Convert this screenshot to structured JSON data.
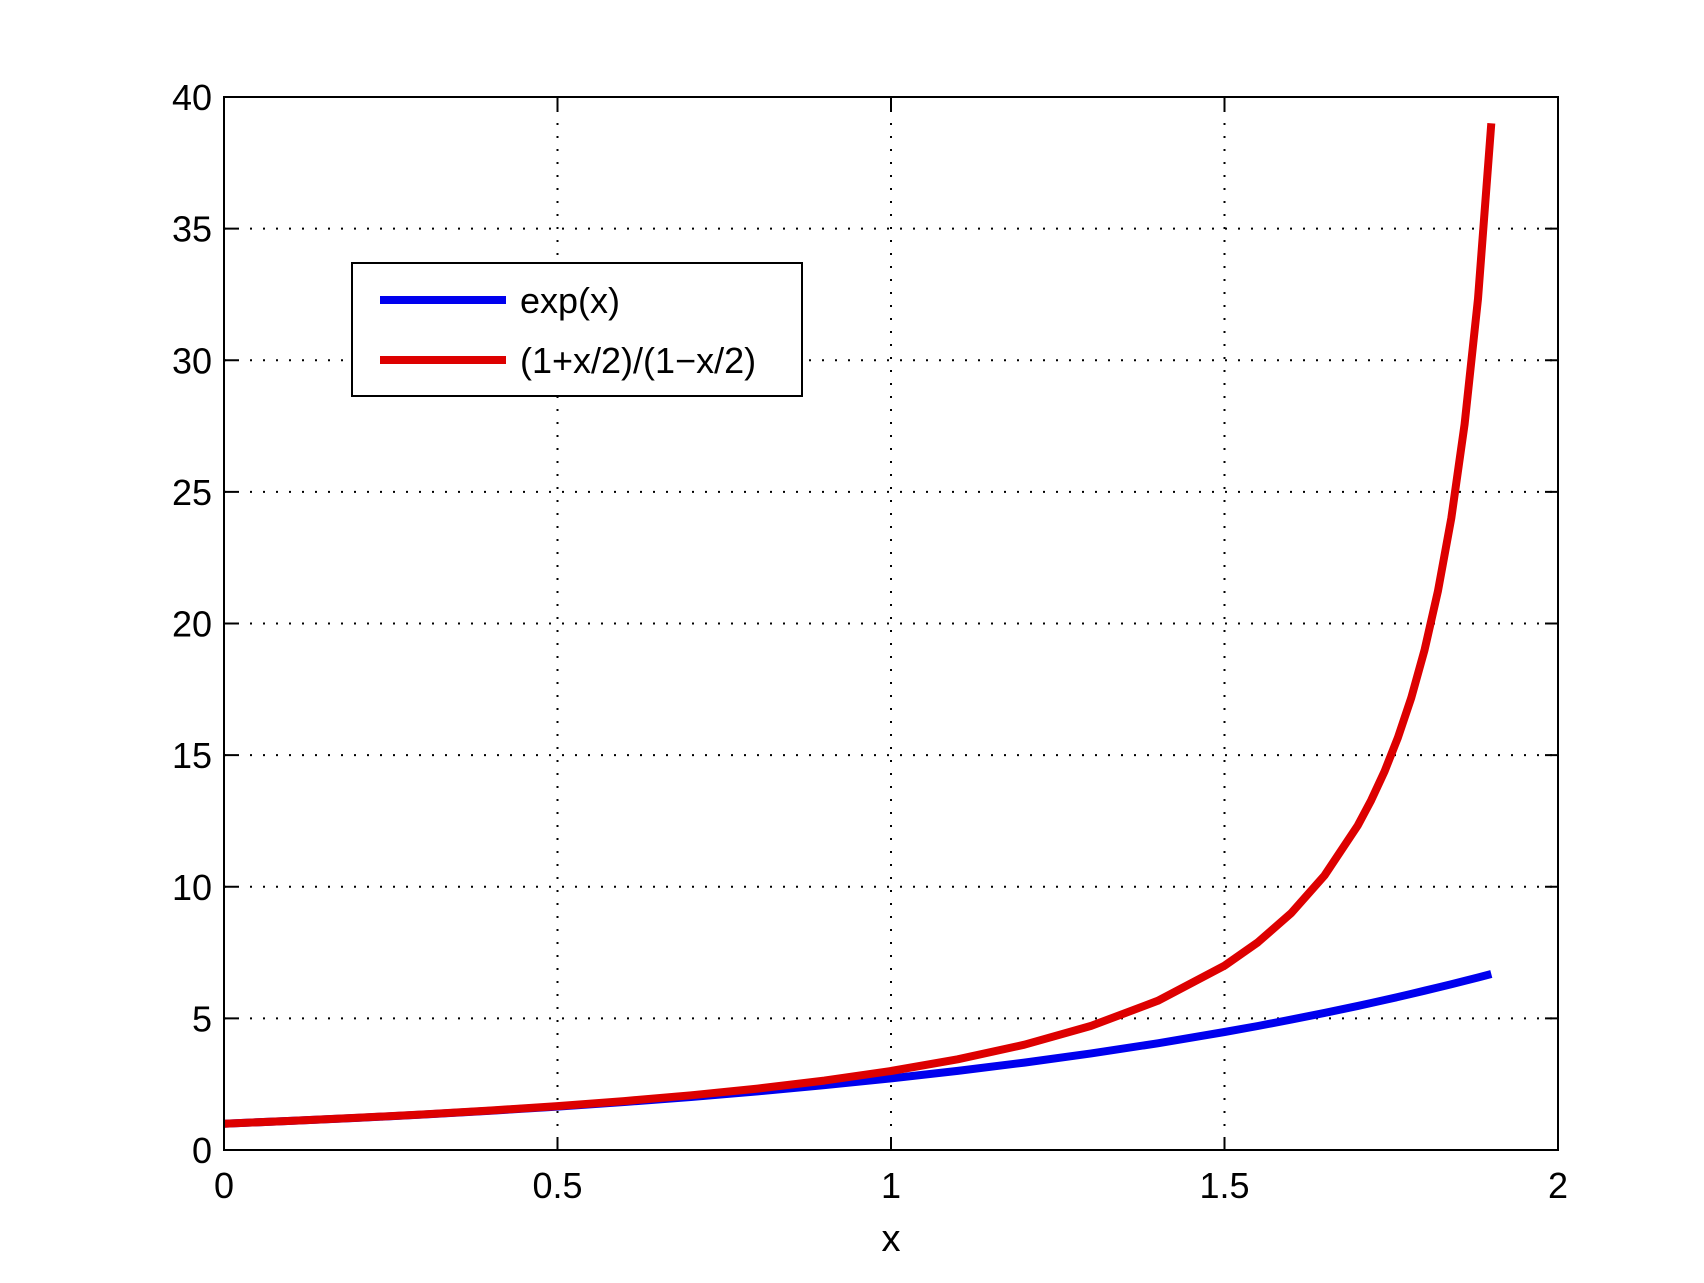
{
  "chart_data": {
    "type": "line",
    "title": "",
    "xlabel": "x",
    "ylabel": "",
    "xlim": [
      0,
      2
    ],
    "ylim": [
      0,
      40
    ],
    "xticks": [
      0,
      0.5,
      1,
      1.5,
      2
    ],
    "xtick_labels": [
      "0",
      "0.5",
      "1",
      "1.5",
      "2"
    ],
    "yticks": [
      0,
      5,
      10,
      15,
      20,
      25,
      30,
      35,
      40
    ],
    "ytick_labels": [
      "0",
      "5",
      "10",
      "15",
      "20",
      "25",
      "30",
      "35",
      "40"
    ],
    "grid": true,
    "legend_position": "top-left",
    "x": [
      0,
      0.1,
      0.2,
      0.3,
      0.4,
      0.5,
      0.6,
      0.7,
      0.8,
      0.9,
      1.0,
      1.1,
      1.2,
      1.3,
      1.4,
      1.5,
      1.55,
      1.6,
      1.65,
      1.7,
      1.72,
      1.74,
      1.76,
      1.78,
      1.8,
      1.82,
      1.84,
      1.86,
      1.88,
      1.9
    ],
    "series": [
      {
        "name": "exp(x)",
        "color": "#0000ee",
        "values": [
          1.0,
          1.105,
          1.221,
          1.35,
          1.492,
          1.649,
          1.822,
          2.014,
          2.226,
          2.46,
          2.718,
          3.004,
          3.32,
          3.669,
          4.055,
          4.482,
          4.711,
          4.953,
          5.207,
          5.474,
          5.585,
          5.697,
          5.812,
          5.93,
          6.05,
          6.171,
          6.297,
          6.424,
          6.554,
          6.686
        ]
      },
      {
        "name": "(1+x/2)/(1−x/2)",
        "color": "#dd0000",
        "values": [
          1.0,
          1.105,
          1.222,
          1.353,
          1.5,
          1.667,
          1.857,
          2.077,
          2.333,
          2.636,
          3.0,
          3.444,
          4.0,
          4.714,
          5.667,
          7.0,
          7.889,
          9.0,
          10.429,
          12.333,
          13.286,
          14.385,
          15.667,
          17.182,
          19.0,
          21.222,
          24.0,
          27.571,
          32.333,
          39.0
        ]
      }
    ]
  }
}
